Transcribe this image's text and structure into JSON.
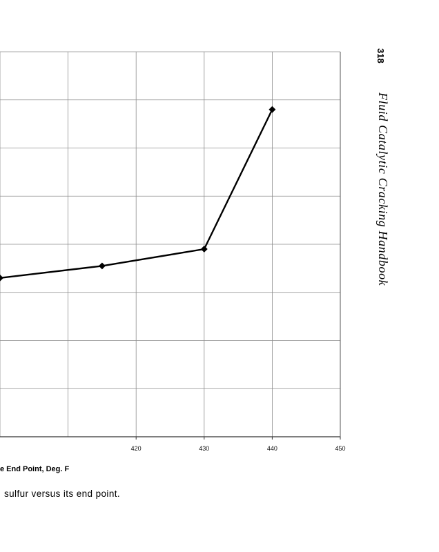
{
  "chart_data": {
    "type": "line",
    "xlabel": "e End Point, Deg. F",
    "x_ticks": [
      "420",
      "430",
      "440",
      "450"
    ],
    "series": [
      {
        "x": [
          400,
          415,
          430,
          440
        ],
        "y": [
          3.3,
          3.55,
          3.9,
          6.8
        ]
      }
    ],
    "xlim": [
      400,
      450
    ],
    "ylim": [
      0,
      8
    ],
    "grid": true,
    "line_color": "#000000"
  },
  "caption": "sulfur versus its end point.",
  "running_head": {
    "page_number": "318",
    "book_title": "Fluid Catalytic Cracking Handbook"
  }
}
